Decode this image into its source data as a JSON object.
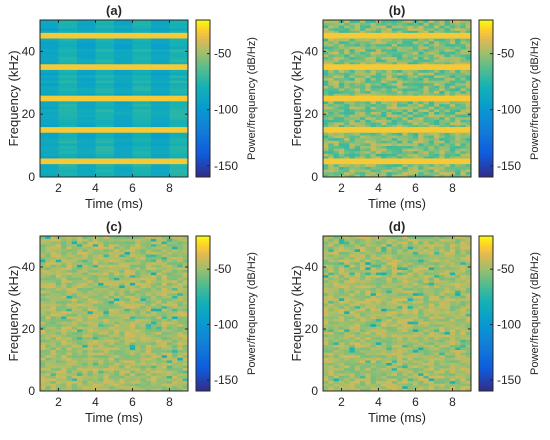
{
  "chart_data": [
    {
      "type": "heatmap",
      "title": "(a)",
      "xlabel": "Time (ms)",
      "ylabel": "Frequency (kHz)",
      "xlim": [
        1,
        9
      ],
      "ylim": [
        0,
        50
      ],
      "x_ticks": [
        2,
        4,
        6,
        8
      ],
      "y_ticks": [
        0,
        20,
        40
      ],
      "colorbar": {
        "label": "Power/frequency (dB/Hz)",
        "ticks": [
          -50,
          -100,
          -150
        ],
        "range": [
          -160,
          -20
        ]
      },
      "pattern": "harmonic_bands",
      "bands_khz": [
        5,
        15,
        25,
        35,
        45
      ],
      "band_level_db": -30,
      "background_level_db": -85
    },
    {
      "type": "heatmap",
      "title": "(b)",
      "xlabel": "Time (ms)",
      "ylabel": "Frequency (kHz)",
      "xlim": [
        1,
        9
      ],
      "ylim": [
        0,
        50
      ],
      "x_ticks": [
        2,
        4,
        6,
        8
      ],
      "y_ticks": [
        0,
        20,
        40
      ],
      "colorbar": {
        "label": "Power/frequency (dB/Hz)",
        "ticks": [
          -50,
          -100,
          -150
        ],
        "range": [
          -160,
          -20
        ]
      },
      "pattern": "noisy_with_bands",
      "bands_khz": [
        5,
        15,
        25,
        35,
        45
      ],
      "band_level_db": -30,
      "background_level_db": -55
    },
    {
      "type": "heatmap",
      "title": "(c)",
      "xlabel": "Time (ms)",
      "ylabel": "Frequency (kHz)",
      "xlim": [
        1,
        9
      ],
      "ylim": [
        0,
        50
      ],
      "x_ticks": [
        2,
        4,
        6,
        8
      ],
      "y_ticks": [
        0,
        20,
        40
      ],
      "colorbar": {
        "label": "Power/frequency (dB/Hz)",
        "ticks": [
          -50,
          -100,
          -150
        ],
        "range": [
          -160,
          -20
        ]
      },
      "pattern": "broadband_noise",
      "background_level_db": -48
    },
    {
      "type": "heatmap",
      "title": "(d)",
      "xlabel": "Time (ms)",
      "ylabel": "Frequency (kHz)",
      "xlim": [
        1,
        9
      ],
      "ylim": [
        0,
        50
      ],
      "x_ticks": [
        2,
        4,
        6,
        8
      ],
      "y_ticks": [
        0,
        20,
        40
      ],
      "colorbar": {
        "label": "Power/frequency (dB/Hz)",
        "ticks": [
          -50,
          -100,
          -150
        ],
        "range": [
          -160,
          -20
        ]
      },
      "pattern": "broadband_noise",
      "background_level_db": -48
    }
  ]
}
